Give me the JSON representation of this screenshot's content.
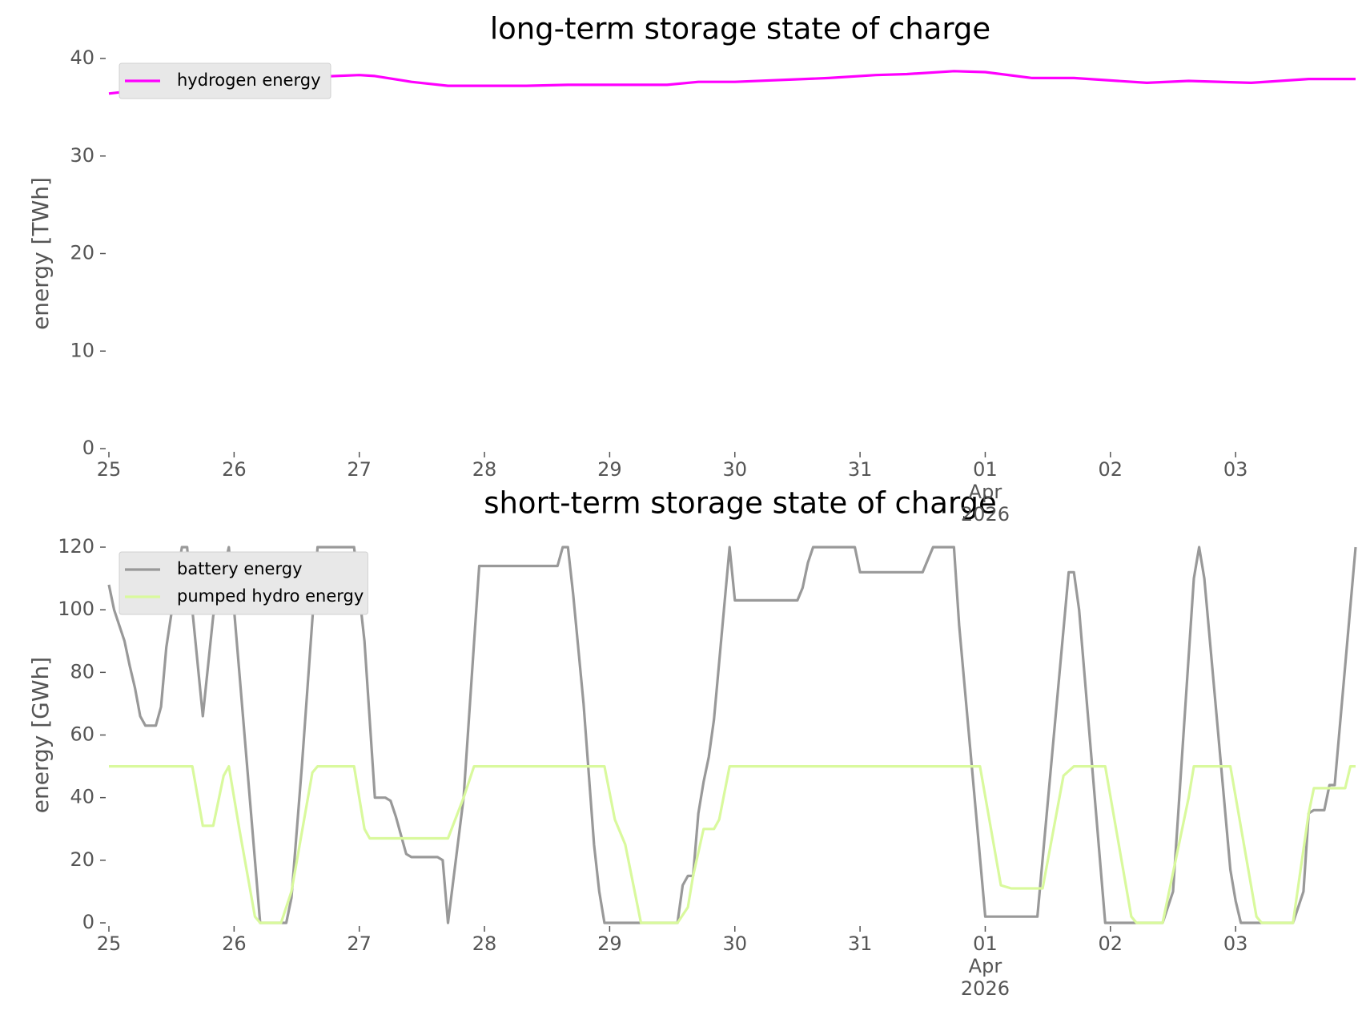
{
  "chart_data": [
    {
      "type": "line",
      "title": "long-term storage state of charge",
      "ylabel": "energy [TWh]",
      "legend": "upper left",
      "xlim": [
        "2026-03-25T00:00",
        "2026-04-03T23:00"
      ],
      "xticks": [
        {
          "value": "2026-03-25T00:00",
          "label": "25"
        },
        {
          "value": "2026-03-26T00:00",
          "label": "26"
        },
        {
          "value": "2026-03-27T00:00",
          "label": "27"
        },
        {
          "value": "2026-03-28T00:00",
          "label": "28"
        },
        {
          "value": "2026-03-29T00:00",
          "label": "29"
        },
        {
          "value": "2026-03-30T00:00",
          "label": "30"
        },
        {
          "value": "2026-03-31T00:00",
          "label": "31"
        },
        {
          "value": "2026-04-01T00:00",
          "label": "01\nApr\n2026"
        },
        {
          "value": "2026-04-02T00:00",
          "label": "02"
        },
        {
          "value": "2026-04-03T00:00",
          "label": "03"
        }
      ],
      "ylim": [
        0,
        40
      ],
      "yticks": [
        0,
        10,
        20,
        30,
        40
      ],
      "series": [
        {
          "name": "hydrogen energy",
          "color": "#ff00ff",
          "x": [
            "2026-03-25T00:00",
            "2026-03-25T13:00",
            "2026-03-26T05:00",
            "2026-03-27T00:00",
            "2026-03-27T03:00",
            "2026-03-27T10:00",
            "2026-03-27T17:00",
            "2026-03-28T08:00",
            "2026-03-28T16:00",
            "2026-03-29T11:00",
            "2026-03-29T17:00",
            "2026-03-30T00:00",
            "2026-03-30T18:00",
            "2026-03-31T03:00",
            "2026-03-31T09:00",
            "2026-03-31T18:00",
            "2026-04-01T00:00",
            "2026-04-01T09:00",
            "2026-04-01T17:00",
            "2026-04-02T07:00",
            "2026-04-02T15:00",
            "2026-04-03T03:00",
            "2026-04-03T14:00",
            "2026-04-03T23:00"
          ],
          "values": [
            36.4,
            37.2,
            37.9,
            38.3,
            38.2,
            37.6,
            37.2,
            37.2,
            37.3,
            37.3,
            37.6,
            37.6,
            38.0,
            38.3,
            38.4,
            38.7,
            38.6,
            38.0,
            38.0,
            37.5,
            37.7,
            37.5,
            37.9,
            37.9
          ]
        }
      ]
    },
    {
      "type": "line",
      "title": "short-term storage state of charge",
      "ylabel": "energy [GWh]",
      "legend": "upper left",
      "xlim": [
        "2026-03-25T00:00",
        "2026-04-03T23:00"
      ],
      "xticks": [
        {
          "value": "2026-03-25T00:00",
          "label": "25"
        },
        {
          "value": "2026-03-26T00:00",
          "label": "26"
        },
        {
          "value": "2026-03-27T00:00",
          "label": "27"
        },
        {
          "value": "2026-03-28T00:00",
          "label": "28"
        },
        {
          "value": "2026-03-29T00:00",
          "label": "29"
        },
        {
          "value": "2026-03-30T00:00",
          "label": "30"
        },
        {
          "value": "2026-03-31T00:00",
          "label": "31"
        },
        {
          "value": "2026-04-01T00:00",
          "label": "01\nApr\n2026"
        },
        {
          "value": "2026-04-02T00:00",
          "label": "02"
        },
        {
          "value": "2026-04-03T00:00",
          "label": "03"
        }
      ],
      "ylim": [
        0,
        120
      ],
      "yticks": [
        0,
        20,
        40,
        60,
        80,
        100,
        120
      ],
      "series": [
        {
          "name": "battery energy",
          "color": "#999999",
          "x": [
            "2026-03-25T00:00",
            "2026-03-25T01:00",
            "2026-03-25T03:00",
            "2026-03-25T04:00",
            "2026-03-25T05:00",
            "2026-03-25T06:00",
            "2026-03-25T07:00",
            "2026-03-25T09:00",
            "2026-03-25T10:00",
            "2026-03-25T11:00",
            "2026-03-25T13:00",
            "2026-03-25T14:00",
            "2026-03-25T15:00",
            "2026-03-25T16:00",
            "2026-03-25T18:00",
            "2026-03-25T20:00",
            "2026-03-25T21:00",
            "2026-03-25T23:00",
            "2026-03-26T01:00",
            "2026-03-26T03:00",
            "2026-03-26T05:00",
            "2026-03-26T10:00",
            "2026-03-26T11:00",
            "2026-03-26T13:00",
            "2026-03-26T16:00",
            "2026-03-26T23:00",
            "2026-03-27T01:00",
            "2026-03-27T03:00",
            "2026-03-27T05:00",
            "2026-03-27T06:00",
            "2026-03-27T07:00",
            "2026-03-27T09:00",
            "2026-03-27T10:00",
            "2026-03-27T15:00",
            "2026-03-27T16:00",
            "2026-03-27T17:00",
            "2026-03-27T20:00",
            "2026-03-27T23:00",
            "2026-03-28T14:00",
            "2026-03-28T15:00",
            "2026-03-28T16:00",
            "2026-03-28T17:00",
            "2026-03-28T19:00",
            "2026-03-28T21:00",
            "2026-03-28T22:00",
            "2026-03-28T23:00",
            "2026-03-29T13:00",
            "2026-03-29T14:00",
            "2026-03-29T15:00",
            "2026-03-29T16:00",
            "2026-03-29T17:00",
            "2026-03-29T18:00",
            "2026-03-29T19:00",
            "2026-03-29T20:00",
            "2026-03-29T23:00",
            "2026-03-30T00:00",
            "2026-03-30T12:00",
            "2026-03-30T13:00",
            "2026-03-30T14:00",
            "2026-03-30T15:00",
            "2026-03-30T23:00",
            "2026-03-31T00:00",
            "2026-03-31T12:00",
            "2026-03-31T14:00",
            "2026-03-31T18:00",
            "2026-03-31T19:00",
            "2026-04-01T00:00",
            "2026-04-01T10:00",
            "2026-04-01T16:00",
            "2026-04-01T17:00",
            "2026-04-01T18:00",
            "2026-04-01T23:00",
            "2026-04-02T10:00",
            "2026-04-02T12:00",
            "2026-04-02T16:00",
            "2026-04-02T17:00",
            "2026-04-02T18:00",
            "2026-04-02T23:00",
            "2026-04-03T00:00",
            "2026-04-03T01:00",
            "2026-04-03T11:00",
            "2026-04-03T13:00",
            "2026-04-03T14:00",
            "2026-04-03T15:00",
            "2026-04-03T17:00",
            "2026-04-03T18:00",
            "2026-04-03T19:00",
            "2026-04-03T23:00"
          ],
          "values": [
            108,
            100,
            90,
            82,
            75,
            66,
            63,
            63,
            69,
            88,
            110,
            120,
            120,
            100,
            66,
            98,
            105,
            120,
            80,
            40,
            0,
            0,
            8,
            50,
            120,
            120,
            90,
            40,
            40,
            39,
            34,
            22,
            21,
            21,
            20,
            0,
            40,
            114,
            114,
            120,
            120,
            105,
            70,
            25,
            10,
            0,
            0,
            12,
            15,
            15,
            35,
            45,
            53,
            65,
            120,
            103,
            103,
            107,
            115,
            120,
            120,
            112,
            112,
            120,
            120,
            95,
            2,
            2,
            112,
            112,
            100,
            0,
            0,
            10,
            110,
            120,
            110,
            17,
            7,
            0,
            0,
            10,
            35,
            36,
            36,
            44,
            44,
            120
          ]
        },
        {
          "name": "pumped hydro energy",
          "color": "#d9f99d",
          "x": [
            "2026-03-25T00:00",
            "2026-03-25T16:00",
            "2026-03-25T18:00",
            "2026-03-25T20:00",
            "2026-03-25T22:00",
            "2026-03-25T23:00",
            "2026-03-26T01:00",
            "2026-03-26T04:00",
            "2026-03-26T05:00",
            "2026-03-26T09:00",
            "2026-03-26T11:00",
            "2026-03-26T15:00",
            "2026-03-26T16:00",
            "2026-03-26T23:00",
            "2026-03-27T01:00",
            "2026-03-27T02:00",
            "2026-03-27T17:00",
            "2026-03-27T20:00",
            "2026-03-27T22:00",
            "2026-03-28T23:00",
            "2026-03-29T01:00",
            "2026-03-29T03:00",
            "2026-03-29T06:00",
            "2026-03-29T13:00",
            "2026-03-29T15:00",
            "2026-03-29T16:00",
            "2026-03-29T18:00",
            "2026-03-29T20:00",
            "2026-03-29T21:00",
            "2026-03-29T23:00",
            "2026-03-31T23:00",
            "2026-04-01T03:00",
            "2026-04-01T05:00",
            "2026-04-01T11:00",
            "2026-04-01T15:00",
            "2026-04-01T17:00",
            "2026-04-01T23:00",
            "2026-04-02T04:00",
            "2026-04-02T05:00",
            "2026-04-02T10:00",
            "2026-04-02T15:00",
            "2026-04-02T16:00",
            "2026-04-02T23:00",
            "2026-04-03T04:00",
            "2026-04-03T05:00",
            "2026-04-03T11:00",
            "2026-04-03T14:00",
            "2026-04-03T15:00",
            "2026-04-03T21:00",
            "2026-04-03T22:00",
            "2026-04-03T23:00"
          ],
          "values": [
            50,
            50,
            31,
            31,
            47,
            50,
            30,
            2,
            0,
            0,
            10,
            48,
            50,
            50,
            30,
            27,
            27,
            40,
            50,
            50,
            33,
            25,
            0,
            0,
            5,
            15,
            30,
            30,
            33,
            50,
            50,
            12,
            11,
            11,
            47,
            50,
            50,
            2,
            0,
            0,
            40,
            50,
            50,
            2,
            0,
            0,
            35,
            43,
            43,
            50,
            50
          ]
        }
      ]
    }
  ]
}
